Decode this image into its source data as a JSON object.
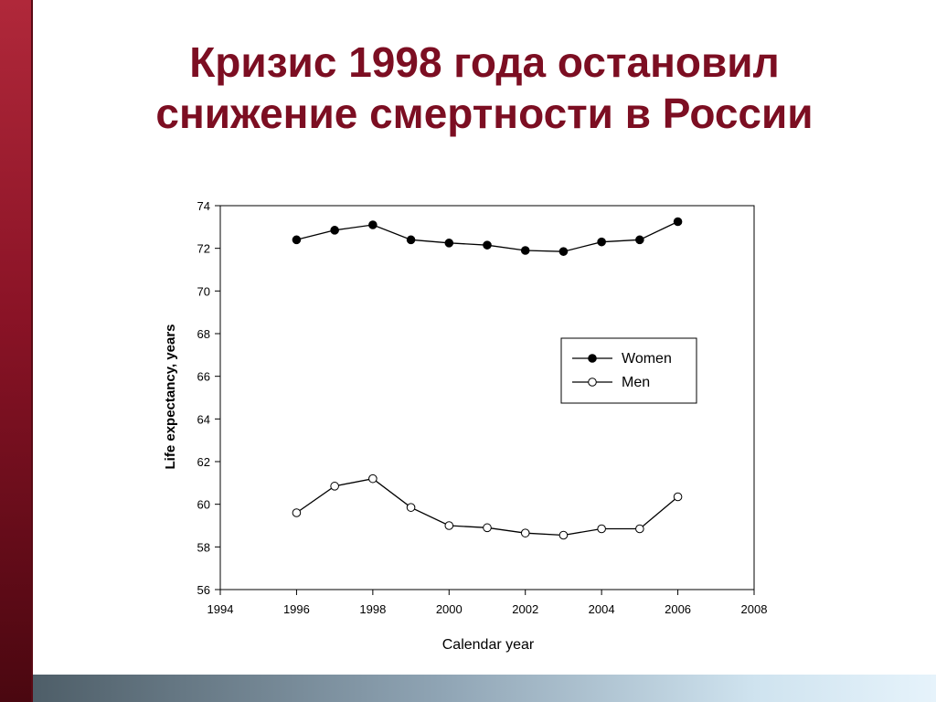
{
  "slide": {
    "title_line1": "Кризис 1998 года остановил",
    "title_line2": "снижение смертности в России",
    "accent_color": "#7c0e22"
  },
  "chart_data": {
    "type": "line",
    "title": "",
    "xlabel": "Calendar year",
    "ylabel": "Life expectancy, years",
    "xlim": [
      1994,
      2008
    ],
    "ylim": [
      56,
      74
    ],
    "xticks": [
      1994,
      1996,
      1998,
      2000,
      2002,
      2004,
      2006,
      2008
    ],
    "yticks": [
      56,
      58,
      60,
      62,
      64,
      66,
      68,
      70,
      72,
      74
    ],
    "legend_position": "right",
    "series": [
      {
        "name": "Women",
        "marker": "filled-circle",
        "x": [
          1996,
          1997,
          1998,
          1999,
          2000,
          2001,
          2002,
          2003,
          2004,
          2005,
          2006
        ],
        "y": [
          72.4,
          72.85,
          73.1,
          72.4,
          72.25,
          72.15,
          71.9,
          71.85,
          72.3,
          72.4,
          73.25
        ]
      },
      {
        "name": "Men",
        "marker": "open-circle",
        "x": [
          1996,
          1997,
          1998,
          1999,
          2000,
          2001,
          2002,
          2003,
          2004,
          2005,
          2006
        ],
        "y": [
          59.6,
          60.85,
          61.2,
          59.85,
          59.0,
          58.9,
          58.65,
          58.55,
          58.85,
          58.85,
          60.35
        ]
      }
    ]
  }
}
